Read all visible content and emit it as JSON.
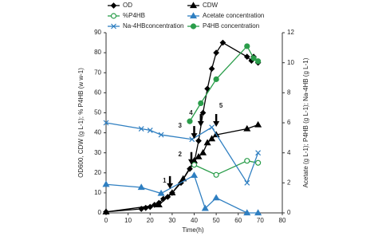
{
  "chart_data": {
    "type": "line",
    "xlabel": "Time(h)",
    "ylabel": "OD600, CDW (g L-1); % P4HB (w w-1)",
    "y2label": "Acetate (g L-1); P4HB (g L-1); Na-4HB (g L-1)",
    "xlim": [
      0,
      80
    ],
    "xticks": [
      0,
      10,
      20,
      30,
      40,
      50,
      60,
      70,
      80
    ],
    "ylim": [
      0,
      90
    ],
    "yticks": [
      0,
      10,
      20,
      30,
      40,
      50,
      60,
      70,
      80,
      90
    ],
    "y2lim": [
      0,
      12
    ],
    "y2ticks": [
      0,
      2,
      4,
      6,
      8,
      10,
      12
    ],
    "grid": false,
    "annotations": [
      "1",
      "2",
      "3",
      "4",
      "5"
    ],
    "series": [
      {
        "name": "OD",
        "color": "#000000",
        "marker": "diamond",
        "filled": true,
        "x": [
          0,
          16,
          18,
          20,
          22,
          24,
          26,
          28,
          30,
          34,
          38,
          40,
          42,
          44,
          46,
          48,
          50,
          53,
          64,
          66,
          67,
          69
        ],
        "values": [
          0.5,
          2,
          2.5,
          3,
          4,
          5,
          7,
          8,
          10,
          15,
          22,
          25,
          36,
          50,
          62,
          72,
          80,
          85,
          78,
          76,
          78,
          75
        ]
      },
      {
        "name": "CDW",
        "color": "#000000",
        "marker": "triangle",
        "filled": true,
        "x": [
          0,
          24,
          30,
          35,
          40,
          42,
          44,
          46,
          48,
          50,
          64,
          69
        ],
        "values": [
          0.5,
          4,
          10,
          17,
          26,
          28,
          30,
          35,
          37,
          39,
          42,
          44
        ]
      },
      {
        "name": "%P4HB",
        "color": "#2a9d4a",
        "marker": "circle",
        "filled": false,
        "x": [
          40,
          50,
          64,
          69
        ],
        "values": [
          24,
          19,
          26,
          25
        ]
      },
      {
        "name": "Acetate concentration",
        "color": "#2f7fc1",
        "marker": "triangle",
        "filled": true,
        "axis": "y2",
        "x": [
          0,
          16,
          25,
          40,
          45,
          50,
          64,
          69
        ],
        "values": [
          1.9,
          1.7,
          1.3,
          2.5,
          0.3,
          1.0,
          0,
          0
        ]
      },
      {
        "name": "Na-4HBconcentration",
        "color": "#2f7fc1",
        "marker": "x",
        "filled": false,
        "axis": "y2",
        "x": [
          0,
          16,
          20,
          25,
          39,
          48,
          64,
          69
        ],
        "values": [
          6.0,
          5.6,
          5.5,
          5.2,
          4.9,
          5.7,
          2.0,
          4.0
        ]
      },
      {
        "name": "P4HB concentration",
        "color": "#2a9d4a",
        "marker": "circle",
        "filled": true,
        "axis": "y2",
        "x": [
          38,
          43,
          50,
          64,
          67,
          69
        ],
        "values": [
          6.1,
          7.3,
          8.9,
          11.1,
          10.3,
          10.1
        ]
      }
    ]
  }
}
